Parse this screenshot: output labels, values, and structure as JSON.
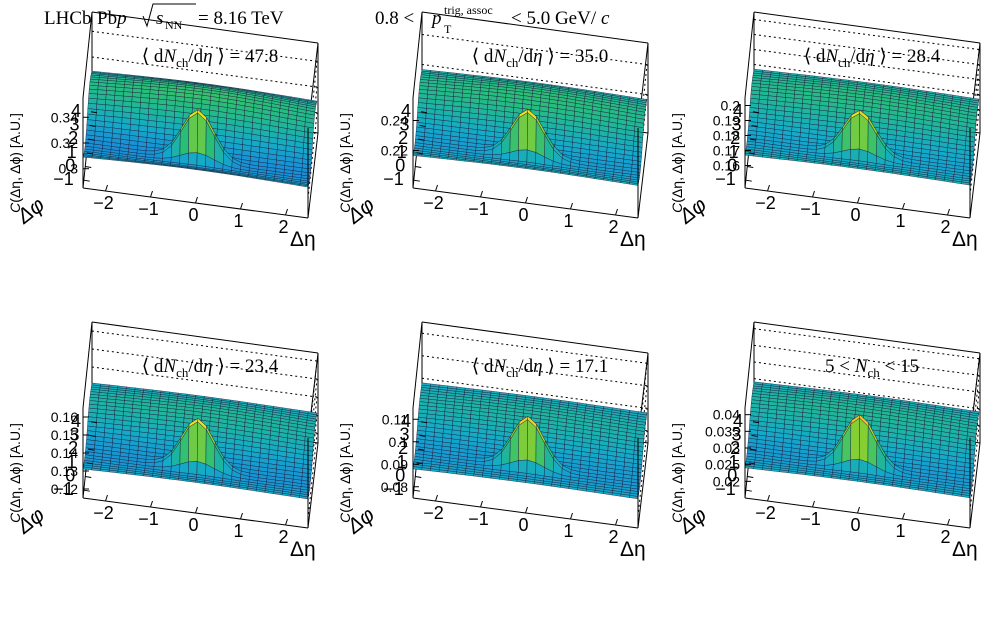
{
  "header": {
    "experiment": "LHCb",
    "system": "Pb",
    "system_projectile": "p",
    "energy_symbol": "s",
    "energy_subscript": "NN",
    "energy_value": "= 8.16 TeV",
    "pt_range_lo": "0.8 <",
    "pt_symbol": "p",
    "pt_superscript": "trig, assoc",
    "pt_subscript": "T",
    "pt_range_hi": "< 5.0 GeV/",
    "pt_unit_c": "c"
  },
  "chart_data": [
    {
      "type": "surface",
      "title": "⟨ dN_ch/dη ⟩ = 47.8",
      "title_parts": [
        "⟨ d",
        "N",
        "ch",
        "/d",
        "η",
        " ⟩ = 47.8"
      ],
      "zlabel": "C(Δη, Δϕ) [A.U.]",
      "xlabel": "Δη",
      "ylabel": "Δφ",
      "zlim": [
        0.285,
        0.355
      ],
      "zticks": [
        "0.3",
        "0.32",
        "0.34"
      ],
      "xticks": [
        "−2",
        "−1",
        "0",
        "1",
        "2"
      ],
      "yticks": [
        "−1",
        "0",
        "1",
        "2",
        "3",
        "4"
      ],
      "xlim": [
        -2.5,
        2.5
      ],
      "ylim": [
        -1.5708,
        4.7124
      ],
      "baseline": 0.302,
      "peak_height": 0.045,
      "ridge_amp": 0.018,
      "near_width": 0.2,
      "eta_width": 0.35
    },
    {
      "type": "surface",
      "title": "⟨ dN_ch/dη ⟩ = 35.0",
      "title_parts": [
        "⟨ d",
        "N",
        "ch",
        "/d",
        "η",
        " ⟩ = 35.0"
      ],
      "zlabel": "C(Δη, Δϕ) [A.U.]",
      "xlabel": "Δη",
      "ylabel": "Δφ",
      "zlim": [
        0.195,
        0.255
      ],
      "zticks": [
        "0.22",
        "0.24"
      ],
      "xticks": [
        "−2",
        "−1",
        "0",
        "1",
        "2"
      ],
      "yticks": [
        "−1",
        "0",
        "1",
        "2",
        "3",
        "4"
      ],
      "xlim": [
        -2.5,
        2.5
      ],
      "ylim": [
        -1.5708,
        4.7124
      ],
      "baseline": 0.212,
      "peak_height": 0.036,
      "ridge_amp": 0.012,
      "near_width": 0.2,
      "eta_width": 0.35
    },
    {
      "type": "surface",
      "title": "⟨ dN_ch/dη ⟩ = 28.4",
      "title_parts": [
        "⟨ d",
        "N",
        "ch",
        "/d",
        "η",
        " ⟩ = 28.4"
      ],
      "zlabel": "C(Δη, Δϕ) [A.U.]",
      "xlabel": "Δη",
      "ylabel": "Δφ",
      "zlim": [
        0.145,
        0.205
      ],
      "zticks": [
        "0.16",
        "0.17",
        "0.18",
        "0.19",
        "0.2"
      ],
      "xticks": [
        "−2",
        "−1",
        "0",
        "1",
        "2"
      ],
      "yticks": [
        "−1",
        "0",
        "1",
        "2",
        "3",
        "4"
      ],
      "xlim": [
        -2.5,
        2.5
      ],
      "ylim": [
        -1.5708,
        4.7124
      ],
      "baseline": 0.163,
      "peak_height": 0.034,
      "ridge_amp": 0.01,
      "near_width": 0.2,
      "eta_width": 0.35
    },
    {
      "type": "surface",
      "title": "⟨ dN_ch/dη ⟩ = 23.4",
      "title_parts": [
        "⟨ d",
        "N",
        "ch",
        "/d",
        "η",
        " ⟩ = 23.4"
      ],
      "zlabel": "C(Δη, Δϕ) [A.U.]",
      "xlabel": "Δη",
      "ylabel": "Δφ",
      "zlim": [
        0.115,
        0.165
      ],
      "zticks": [
        "0.12",
        "0.13",
        "0.14",
        "0.15",
        "0.16"
      ],
      "xticks": [
        "−2",
        "−1",
        "0",
        "1",
        "2"
      ],
      "yticks": [
        "−1",
        "0",
        "1",
        "2",
        "3",
        "4"
      ],
      "xlim": [
        -2.5,
        2.5
      ],
      "ylim": [
        -1.5708,
        4.7124
      ],
      "baseline": 0.128,
      "peak_height": 0.032,
      "ridge_amp": 0.008,
      "near_width": 0.2,
      "eta_width": 0.35
    },
    {
      "type": "surface",
      "title": "⟨ dN_ch/dη ⟩ = 17.1",
      "title_parts": [
        "⟨ d",
        "N",
        "ch",
        "/d",
        "η",
        " ⟩ = 17.1"
      ],
      "zlabel": "C(Δη, Δϕ) [A.U.]",
      "xlabel": "Δη",
      "ylabel": "Δφ",
      "zlim": [
        0.075,
        0.115
      ],
      "zticks": [
        "0.08",
        "0.09",
        "0.1",
        "0.11"
      ],
      "xticks": [
        "−2",
        "−1",
        "0",
        "1",
        "2"
      ],
      "yticks": [
        "−1",
        "0",
        "1",
        "2",
        "3",
        "4"
      ],
      "xlim": [
        -2.5,
        2.5
      ],
      "ylim": [
        -1.5708,
        4.7124
      ],
      "baseline": 0.086,
      "peak_height": 0.026,
      "ridge_amp": 0.005,
      "near_width": 0.2,
      "eta_width": 0.35
    },
    {
      "type": "surface",
      "title": "5 < N_ch < 15",
      "title_parts": [
        "5 < ",
        "N",
        "ch",
        " < 15",
        "",
        ""
      ],
      "zlabel": "C(Δη, Δϕ) [A.U.]",
      "xlabel": "Δη",
      "ylabel": "Δφ",
      "zlim": [
        0.015,
        0.042
      ],
      "zticks": [
        "0.02",
        "0.025",
        "0.03",
        "0.035",
        "0.04"
      ],
      "xticks": [
        "−2",
        "−1",
        "0",
        "1",
        "2"
      ],
      "yticks": [
        "−1",
        "0",
        "1",
        "2",
        "3",
        "4"
      ],
      "xlim": [
        -2.5,
        2.5
      ],
      "ylim": [
        -1.5708,
        4.7124
      ],
      "baseline": 0.0225,
      "peak_height": 0.018,
      "ridge_amp": 0.004,
      "near_width": 0.2,
      "eta_width": 0.35
    }
  ]
}
